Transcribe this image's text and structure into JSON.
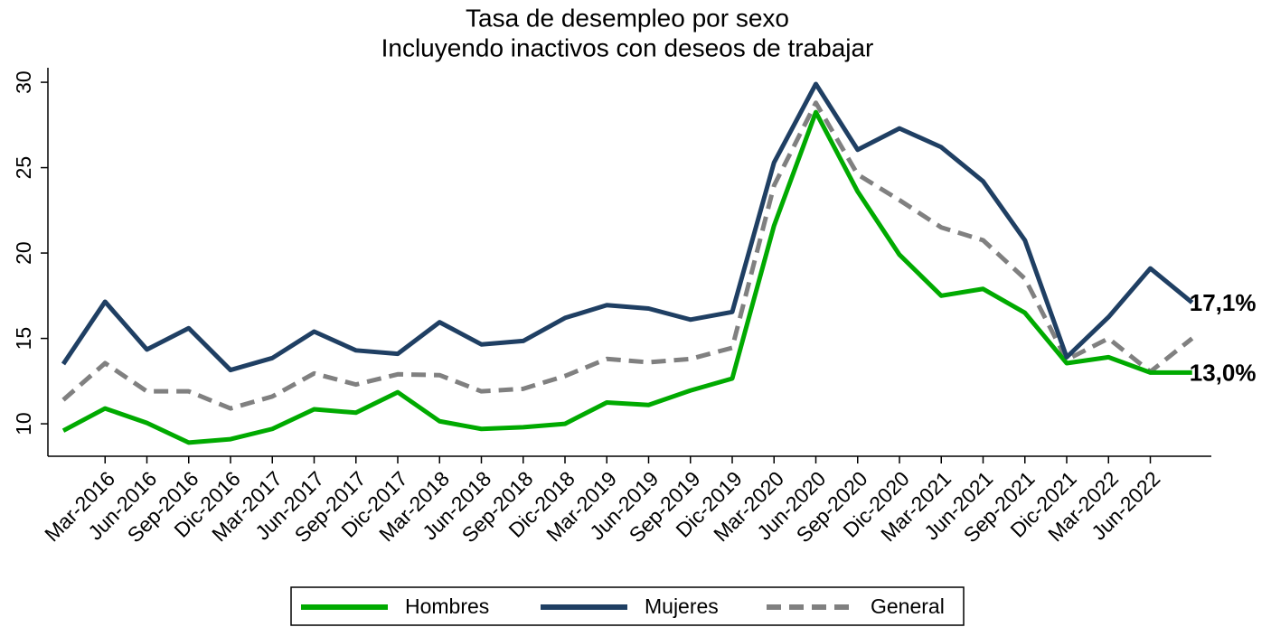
{
  "chart_data": {
    "type": "line",
    "title": "Tasa de desempleo por sexo",
    "subtitle": "Incluyendo inactivos con deseos de trabajar",
    "categories": [
      null,
      "Mar-2016",
      "Jun-2016",
      "Sep-2016",
      "Dic-2016",
      "Mar-2017",
      "Jun-2017",
      "Sep-2017",
      "Dic-2017",
      "Mar-2018",
      "Jun-2018",
      "Sep-2018",
      "Dic-2018",
      "Mar-2019",
      "Jun-2019",
      "Sep-2019",
      "Dic-2019",
      "Mar-2020",
      "Jun-2020",
      "Sep-2020",
      "Dic-2020",
      "Mar-2021",
      "Jun-2021",
      "Sep-2021",
      "Dic-2021",
      "Mar-2022",
      "Jun-2022",
      null
    ],
    "series": [
      {
        "name": "Hombres",
        "color": "#00aa00",
        "dash": false,
        "values": [
          9.6,
          10.9,
          10.05,
          8.9,
          9.1,
          9.7,
          10.85,
          10.65,
          11.85,
          10.15,
          9.7,
          9.8,
          10.0,
          11.25,
          11.1,
          11.95,
          12.65,
          21.6,
          28.25,
          23.6,
          19.9,
          17.5,
          17.9,
          16.5,
          13.55,
          13.9,
          13.0,
          13.0
        ],
        "value_labels": [
          null,
          null,
          null,
          null,
          null,
          null,
          null,
          null,
          null,
          null,
          null,
          null,
          null,
          null,
          null,
          null,
          null,
          null,
          null,
          null,
          null,
          null,
          null,
          null,
          null,
          null,
          null,
          "13,0%"
        ]
      },
      {
        "name": "Mujeres",
        "color": "#1f3f63",
        "dash": false,
        "values": [
          13.5,
          17.15,
          14.35,
          15.6,
          13.15,
          13.85,
          15.4,
          14.3,
          14.1,
          15.95,
          14.65,
          14.85,
          16.2,
          16.95,
          16.75,
          16.1,
          16.55,
          25.3,
          29.9,
          26.05,
          27.3,
          26.2,
          24.2,
          20.75,
          13.9,
          16.25,
          19.1,
          17.1
        ],
        "value_labels": [
          null,
          null,
          null,
          null,
          null,
          null,
          null,
          null,
          null,
          null,
          null,
          null,
          null,
          null,
          null,
          null,
          null,
          null,
          null,
          null,
          null,
          null,
          null,
          null,
          null,
          null,
          null,
          "17,1%"
        ]
      },
      {
        "name": "General",
        "color": "#808080",
        "dash": true,
        "values": [
          11.4,
          13.55,
          11.9,
          11.9,
          10.9,
          11.6,
          12.95,
          12.3,
          12.9,
          12.85,
          11.9,
          12.05,
          12.8,
          13.8,
          13.6,
          13.8,
          14.45,
          23.95,
          28.8,
          24.6,
          23.1,
          21.5,
          20.75,
          18.5,
          13.75,
          15.0,
          13.05,
          15.0
        ]
      }
    ],
    "ylim": [
      8.1,
      30.85
    ],
    "yticks": [
      10,
      15,
      20,
      25,
      30
    ],
    "grid": false,
    "legend": "bottom"
  }
}
